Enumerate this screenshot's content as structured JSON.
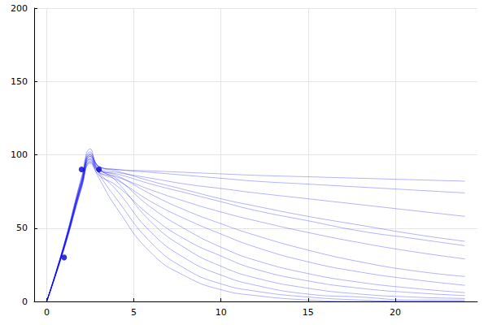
{
  "chart_data": {
    "type": "line",
    "xlim": [
      -0.72,
      24.72
    ],
    "xticks": [
      0,
      5,
      10,
      15,
      20
    ],
    "ylim": [
      0,
      200
    ],
    "yticks": [
      0,
      50,
      100,
      150,
      200
    ],
    "grid": true,
    "series": [
      {
        "type": "line",
        "color": "#0000ff",
        "x": [
          0,
          1,
          2,
          2.5,
          3,
          4,
          6,
          8,
          10,
          12,
          15,
          18,
          21,
          24
        ],
        "values": [
          0,
          38,
          82,
          100,
          92,
          90,
          88,
          86,
          84,
          82,
          80,
          78,
          76,
          74
        ]
      },
      {
        "type": "line",
        "color": "#0000ff",
        "x": [
          0,
          1,
          2,
          2.5,
          3,
          4,
          6,
          8,
          10,
          12,
          15,
          18,
          21,
          24
        ],
        "values": [
          0,
          37,
          80,
          97,
          90,
          88,
          84,
          80,
          77,
          74,
          70,
          66,
          62,
          58
        ]
      },
      {
        "type": "line",
        "color": "#0000ff",
        "x": [
          0,
          1,
          2,
          2.5,
          3,
          4,
          6,
          8,
          10,
          12,
          15,
          18,
          21,
          24
        ],
        "values": [
          0,
          39,
          84,
          102,
          92,
          89,
          82,
          76,
          70,
          65,
          58,
          52,
          46,
          41
        ]
      },
      {
        "type": "line",
        "color": "#0000ff",
        "x": [
          0,
          1,
          2,
          2.5,
          3,
          4,
          6,
          8,
          10,
          12,
          15,
          18,
          21,
          24
        ],
        "values": [
          0,
          36,
          78,
          95,
          88,
          85,
          76,
          68,
          61,
          55,
          47,
          40,
          34,
          29
        ]
      },
      {
        "type": "line",
        "color": "#0000ff",
        "x": [
          0,
          1,
          2,
          2.5,
          3,
          4,
          6,
          8,
          10,
          12,
          15,
          18,
          21,
          24
        ],
        "values": [
          0,
          38,
          81,
          99,
          90,
          86,
          73,
          62,
          53,
          45,
          35,
          27,
          21,
          17
        ]
      },
      {
        "type": "line",
        "color": "#0000ff",
        "x": [
          0,
          1,
          2,
          2.5,
          3,
          4,
          6,
          8,
          10,
          12,
          15,
          18,
          21,
          24
        ],
        "values": [
          0,
          37,
          79,
          96,
          88,
          83,
          68,
          56,
          46,
          37,
          27,
          20,
          15,
          11
        ]
      },
      {
        "type": "line",
        "color": "#0000ff",
        "x": [
          0,
          1,
          2,
          2.5,
          3,
          4,
          6,
          8,
          10,
          12,
          15,
          18,
          21,
          24
        ],
        "values": [
          0,
          38,
          82,
          100,
          90,
          84,
          64,
          49,
          37,
          28,
          19,
          13,
          9,
          6
        ]
      },
      {
        "type": "line",
        "color": "#0000ff",
        "x": [
          0,
          1,
          2,
          2.5,
          3,
          4,
          6,
          8,
          10,
          12,
          15,
          18,
          21,
          24
        ],
        "values": [
          0,
          36,
          77,
          94,
          86,
          79,
          58,
          42,
          31,
          22,
          14,
          9,
          6,
          4
        ]
      },
      {
        "type": "line",
        "color": "#0000ff",
        "x": [
          0,
          1,
          2,
          2.5,
          3,
          4,
          6,
          8,
          10,
          12,
          15,
          18,
          21,
          24
        ],
        "values": [
          0,
          39,
          83,
          101,
          91,
          82,
          54,
          36,
          24,
          16,
          9,
          5,
          3,
          2
        ]
      },
      {
        "type": "line",
        "color": "#0000ff",
        "x": [
          0,
          1,
          2,
          2.5,
          3,
          4,
          6,
          8,
          10,
          12,
          15,
          18,
          21,
          24
        ],
        "values": [
          0,
          37,
          80,
          98,
          88,
          76,
          47,
          29,
          18,
          11,
          5,
          3,
          1,
          1
        ]
      },
      {
        "type": "line",
        "color": "#0000ff",
        "x": [
          0,
          1,
          2,
          2.5,
          3,
          4,
          6,
          8,
          10,
          12,
          15,
          18,
          21,
          24
        ],
        "values": [
          0,
          38,
          81,
          99,
          87,
          70,
          40,
          22,
          12,
          7,
          3,
          1,
          0,
          0
        ]
      },
      {
        "type": "line",
        "color": "#0000ff",
        "x": [
          0,
          1,
          2,
          2.5,
          3,
          4,
          6,
          8,
          10,
          12,
          15,
          18,
          21,
          24
        ],
        "values": [
          0,
          36,
          78,
          95,
          84,
          64,
          33,
          17,
          8,
          4,
          1,
          0,
          0,
          0
        ]
      },
      {
        "type": "line",
        "color": "#0000ff",
        "x": [
          0,
          1,
          2,
          2.5,
          3,
          4,
          6,
          8,
          10,
          12,
          15,
          18,
          21,
          24
        ],
        "values": [
          0,
          39,
          85,
          104,
          92,
          90,
          89,
          88,
          87,
          86,
          85,
          84,
          83,
          82
        ]
      },
      {
        "type": "line",
        "color": "#0000ff",
        "x": [
          0,
          1,
          2,
          2.5,
          3,
          4,
          6,
          8,
          10,
          12,
          15,
          18,
          21,
          24
        ],
        "values": [
          0,
          37,
          80,
          97,
          89,
          87,
          80,
          74,
          68,
          62,
          55,
          48,
          43,
          38
        ]
      },
      {
        "type": "scatter",
        "color": "#0000cd",
        "marker": "circle",
        "x": [
          1,
          2,
          3
        ],
        "values": [
          30,
          90,
          90
        ]
      }
    ]
  }
}
